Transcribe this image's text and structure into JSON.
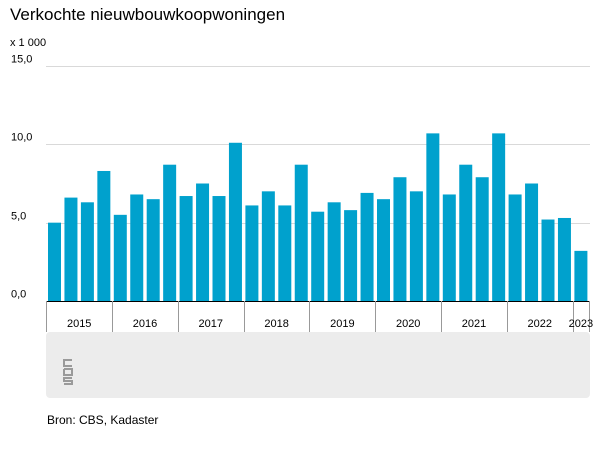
{
  "title": "Verkochte nieuwbouwkoopwoningen",
  "unit": "x 1 000",
  "source_label": "Bron: CBS, Kadaster",
  "logo_icon": "cbs-logo-icon",
  "colors": {
    "bar": "#00a1cd",
    "grid": "#d9d9d9",
    "axis": "#000000",
    "panel": "#ececec"
  },
  "chart_data": {
    "type": "bar",
    "title": "Verkochte nieuwbouwkoopwoningen",
    "ylabel": "x 1 000",
    "ylim": [
      0,
      15
    ],
    "yticks": [
      "0,0",
      "5,0",
      "10,0",
      "15,0"
    ],
    "ytick_values": [
      0,
      5,
      10,
      15
    ],
    "grid": true,
    "groups": [
      {
        "label": "2015",
        "values": [
          5.0,
          6.6,
          6.3,
          8.3
        ]
      },
      {
        "label": "2016",
        "values": [
          5.5,
          6.8,
          6.5,
          8.7
        ]
      },
      {
        "label": "2017",
        "values": [
          6.7,
          7.5,
          6.7,
          10.1
        ]
      },
      {
        "label": "2018",
        "values": [
          6.1,
          7.0,
          6.1,
          8.7
        ]
      },
      {
        "label": "2019",
        "values": [
          5.7,
          6.3,
          5.8,
          6.9
        ]
      },
      {
        "label": "2020",
        "values": [
          6.5,
          7.9,
          7.0,
          10.7
        ]
      },
      {
        "label": "2021",
        "values": [
          6.8,
          8.7,
          7.9,
          10.7
        ]
      },
      {
        "label": "2022",
        "values": [
          6.8,
          7.5,
          5.2,
          5.3
        ]
      },
      {
        "label": "2023",
        "values": [
          3.2
        ]
      }
    ]
  }
}
